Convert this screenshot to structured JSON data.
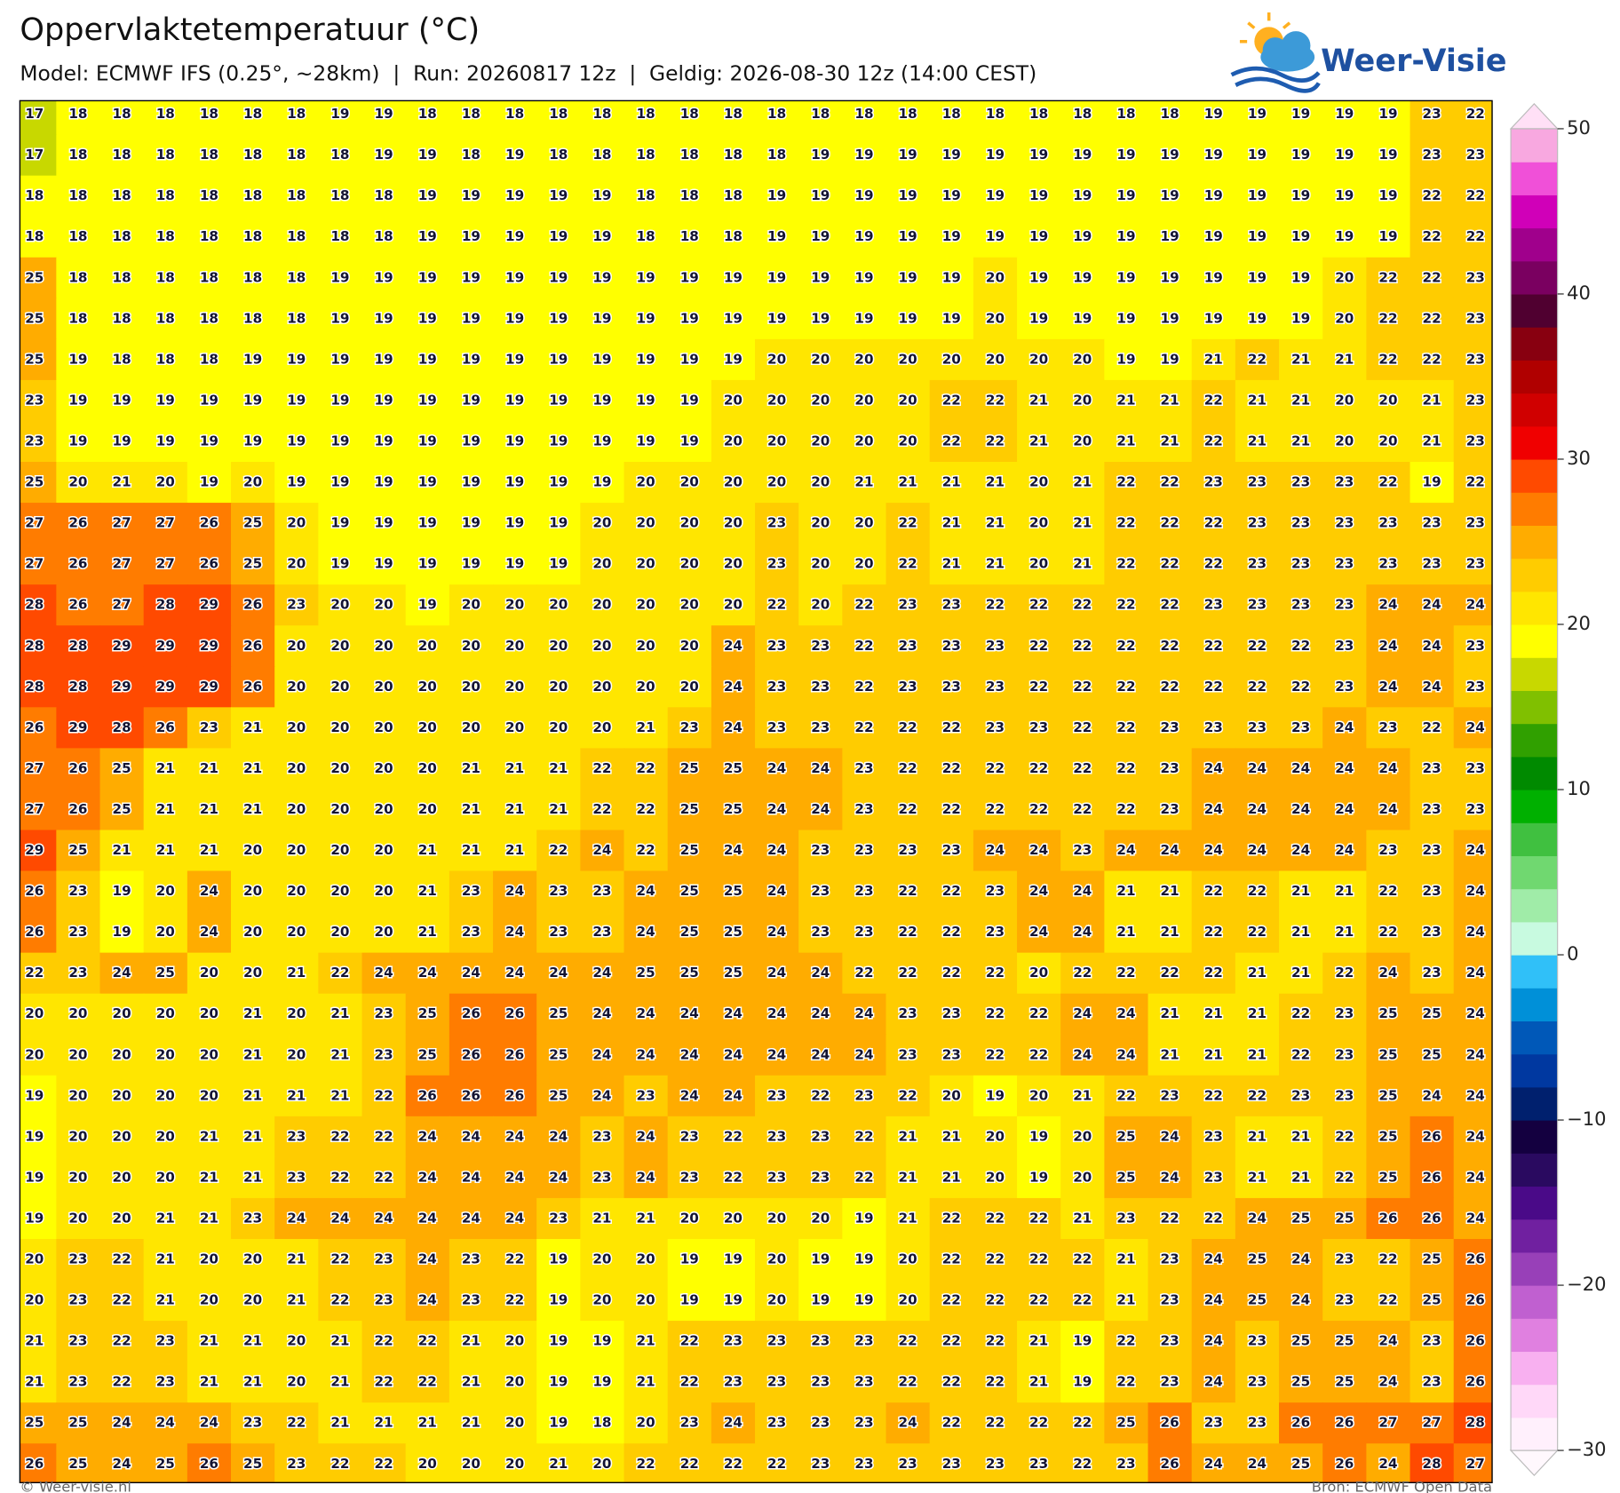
{
  "title": "Oppervlaktetemperatuur (°C)",
  "subtitle": "Model: ECMWF IFS (0.25°, ~28km)  |  Run: 20260817 12z  |  Geldig: 2026-08-30 12z (14:00 CEST)",
  "logo": "Weer-Visie",
  "footer_left": "© Weer-visie.nl",
  "footer_right": "Bron: ECMWF Open Data",
  "grid": {
    "rows": [
      [
        17,
        18,
        18,
        18,
        18,
        18,
        18,
        19,
        19,
        18,
        18,
        18,
        18,
        18,
        18,
        18,
        18,
        18,
        18,
        18,
        18,
        18,
        18,
        18,
        18,
        18,
        18,
        19,
        19,
        19,
        19,
        19,
        23,
        22
      ],
      [
        17,
        18,
        18,
        18,
        18,
        18,
        18,
        18,
        19,
        19,
        18,
        19,
        18,
        18,
        18,
        18,
        18,
        18,
        19,
        19,
        19,
        19,
        19,
        19,
        19,
        19,
        19,
        19,
        19,
        19,
        19,
        19,
        23,
        23
      ],
      [
        18,
        18,
        18,
        18,
        18,
        18,
        18,
        18,
        18,
        19,
        19,
        19,
        19,
        19,
        18,
        18,
        18,
        19,
        19,
        19,
        19,
        19,
        19,
        19,
        19,
        19,
        19,
        19,
        19,
        19,
        19,
        19,
        22,
        22
      ],
      [
        18,
        18,
        18,
        18,
        18,
        18,
        18,
        18,
        18,
        19,
        19,
        19,
        19,
        19,
        18,
        18,
        18,
        19,
        19,
        19,
        19,
        19,
        19,
        19,
        19,
        19,
        19,
        19,
        19,
        19,
        19,
        19,
        22,
        22
      ],
      [
        25,
        18,
        18,
        18,
        18,
        18,
        18,
        19,
        19,
        19,
        19,
        19,
        19,
        19,
        19,
        19,
        19,
        19,
        19,
        19,
        19,
        19,
        20,
        19,
        19,
        19,
        19,
        19,
        19,
        19,
        20,
        22,
        22,
        23
      ],
      [
        25,
        18,
        18,
        18,
        18,
        18,
        18,
        19,
        19,
        19,
        19,
        19,
        19,
        19,
        19,
        19,
        19,
        19,
        19,
        19,
        19,
        19,
        20,
        19,
        19,
        19,
        19,
        19,
        19,
        19,
        20,
        22,
        22,
        23
      ],
      [
        25,
        19,
        18,
        18,
        18,
        19,
        19,
        19,
        19,
        19,
        19,
        19,
        19,
        19,
        19,
        19,
        19,
        20,
        20,
        20,
        20,
        20,
        20,
        20,
        20,
        19,
        19,
        21,
        22,
        21,
        21,
        22,
        22,
        23
      ],
      [
        23,
        19,
        19,
        19,
        19,
        19,
        19,
        19,
        19,
        19,
        19,
        19,
        19,
        19,
        19,
        19,
        20,
        20,
        20,
        20,
        20,
        22,
        22,
        21,
        20,
        21,
        21,
        22,
        21,
        21,
        20,
        20,
        21,
        23
      ],
      [
        23,
        19,
        19,
        19,
        19,
        19,
        19,
        19,
        19,
        19,
        19,
        19,
        19,
        19,
        19,
        19,
        20,
        20,
        20,
        20,
        20,
        22,
        22,
        21,
        20,
        21,
        21,
        22,
        21,
        21,
        20,
        20,
        21,
        23
      ],
      [
        25,
        20,
        21,
        20,
        19,
        20,
        19,
        19,
        19,
        19,
        19,
        19,
        19,
        19,
        20,
        20,
        20,
        20,
        20,
        21,
        21,
        21,
        21,
        20,
        21,
        22,
        22,
        23,
        23,
        23,
        23,
        22,
        19,
        22
      ],
      [
        27,
        26,
        27,
        27,
        26,
        25,
        20,
        19,
        19,
        19,
        19,
        19,
        19,
        20,
        20,
        20,
        20,
        23,
        20,
        20,
        22,
        21,
        21,
        20,
        21,
        22,
        22,
        22,
        23,
        23,
        23,
        23,
        23,
        23
      ],
      [
        27,
        26,
        27,
        27,
        26,
        25,
        20,
        19,
        19,
        19,
        19,
        19,
        19,
        20,
        20,
        20,
        20,
        23,
        20,
        20,
        22,
        21,
        21,
        20,
        21,
        22,
        22,
        22,
        23,
        23,
        23,
        23,
        23,
        23
      ],
      [
        28,
        26,
        27,
        28,
        29,
        26,
        23,
        20,
        20,
        19,
        20,
        20,
        20,
        20,
        20,
        20,
        20,
        22,
        20,
        22,
        23,
        23,
        22,
        22,
        22,
        22,
        22,
        23,
        23,
        23,
        23,
        24,
        24,
        24
      ],
      [
        28,
        28,
        29,
        29,
        29,
        26,
        20,
        20,
        20,
        20,
        20,
        20,
        20,
        20,
        20,
        20,
        24,
        23,
        23,
        22,
        23,
        23,
        23,
        22,
        22,
        22,
        22,
        22,
        22,
        22,
        23,
        24,
        24,
        23
      ],
      [
        28,
        28,
        29,
        29,
        29,
        26,
        20,
        20,
        20,
        20,
        20,
        20,
        20,
        20,
        20,
        20,
        24,
        23,
        23,
        22,
        23,
        23,
        23,
        22,
        22,
        22,
        22,
        22,
        22,
        22,
        23,
        24,
        24,
        23
      ],
      [
        26,
        29,
        28,
        26,
        23,
        21,
        20,
        20,
        20,
        20,
        20,
        20,
        20,
        20,
        21,
        23,
        24,
        23,
        23,
        22,
        22,
        22,
        23,
        23,
        22,
        22,
        23,
        23,
        23,
        23,
        24,
        23,
        22,
        24
      ],
      [
        27,
        26,
        25,
        21,
        21,
        21,
        20,
        20,
        20,
        20,
        21,
        21,
        21,
        22,
        22,
        25,
        25,
        24,
        24,
        23,
        22,
        22,
        22,
        22,
        22,
        22,
        23,
        24,
        24,
        24,
        24,
        24,
        23,
        23
      ],
      [
        27,
        26,
        25,
        21,
        21,
        21,
        20,
        20,
        20,
        20,
        21,
        21,
        21,
        22,
        22,
        25,
        25,
        24,
        24,
        23,
        22,
        22,
        22,
        22,
        22,
        22,
        23,
        24,
        24,
        24,
        24,
        24,
        23,
        23
      ],
      [
        29,
        25,
        21,
        21,
        21,
        20,
        20,
        20,
        20,
        21,
        21,
        21,
        22,
        24,
        22,
        25,
        24,
        24,
        23,
        23,
        23,
        23,
        24,
        24,
        23,
        24,
        24,
        24,
        24,
        24,
        24,
        23,
        23,
        24
      ],
      [
        26,
        23,
        19,
        20,
        24,
        20,
        20,
        20,
        20,
        21,
        23,
        24,
        23,
        23,
        24,
        25,
        25,
        24,
        23,
        23,
        22,
        22,
        23,
        24,
        24,
        21,
        21,
        22,
        22,
        21,
        21,
        22,
        23,
        24
      ],
      [
        26,
        23,
        19,
        20,
        24,
        20,
        20,
        20,
        20,
        21,
        23,
        24,
        23,
        23,
        24,
        25,
        25,
        24,
        23,
        23,
        22,
        22,
        23,
        24,
        24,
        21,
        21,
        22,
        22,
        21,
        21,
        22,
        23,
        24
      ],
      [
        22,
        23,
        24,
        25,
        20,
        20,
        21,
        22,
        24,
        24,
        24,
        24,
        24,
        24,
        25,
        25,
        25,
        24,
        24,
        22,
        22,
        22,
        22,
        20,
        22,
        22,
        22,
        22,
        21,
        21,
        22,
        24,
        23,
        24
      ],
      [
        20,
        20,
        20,
        20,
        20,
        21,
        20,
        21,
        23,
        25,
        26,
        26,
        25,
        24,
        24,
        24,
        24,
        24,
        24,
        24,
        23,
        23,
        22,
        22,
        24,
        24,
        21,
        21,
        21,
        22,
        23,
        25,
        25,
        24
      ],
      [
        20,
        20,
        20,
        20,
        20,
        21,
        20,
        21,
        23,
        25,
        26,
        26,
        25,
        24,
        24,
        24,
        24,
        24,
        24,
        24,
        23,
        23,
        22,
        22,
        24,
        24,
        21,
        21,
        21,
        22,
        23,
        25,
        25,
        24
      ],
      [
        19,
        20,
        20,
        20,
        20,
        21,
        21,
        21,
        22,
        26,
        26,
        26,
        25,
        24,
        23,
        24,
        24,
        23,
        22,
        23,
        22,
        20,
        19,
        20,
        21,
        22,
        23,
        22,
        22,
        23,
        23,
        25,
        24,
        24
      ],
      [
        19,
        20,
        20,
        20,
        21,
        21,
        23,
        22,
        22,
        24,
        24,
        24,
        24,
        23,
        24,
        23,
        22,
        23,
        23,
        22,
        21,
        21,
        20,
        19,
        20,
        25,
        24,
        23,
        21,
        21,
        22,
        25,
        26,
        24
      ],
      [
        19,
        20,
        20,
        20,
        21,
        21,
        23,
        22,
        22,
        24,
        24,
        24,
        24,
        23,
        24,
        23,
        22,
        23,
        23,
        22,
        21,
        21,
        20,
        19,
        20,
        25,
        24,
        23,
        21,
        21,
        22,
        25,
        26,
        24
      ],
      [
        19,
        20,
        20,
        21,
        21,
        23,
        24,
        24,
        24,
        24,
        24,
        24,
        23,
        21,
        21,
        20,
        20,
        20,
        20,
        19,
        21,
        22,
        22,
        22,
        21,
        23,
        22,
        22,
        24,
        25,
        25,
        26,
        26,
        24
      ],
      [
        20,
        23,
        22,
        21,
        20,
        20,
        21,
        22,
        23,
        24,
        23,
        22,
        19,
        20,
        20,
        19,
        19,
        20,
        19,
        19,
        20,
        22,
        22,
        22,
        22,
        21,
        23,
        24,
        25,
        24,
        23,
        22,
        25,
        26
      ],
      [
        20,
        23,
        22,
        21,
        20,
        20,
        21,
        22,
        23,
        24,
        23,
        22,
        19,
        20,
        20,
        19,
        19,
        20,
        19,
        19,
        20,
        22,
        22,
        22,
        22,
        21,
        23,
        24,
        25,
        24,
        23,
        22,
        25,
        26
      ],
      [
        21,
        23,
        22,
        23,
        21,
        21,
        20,
        21,
        22,
        22,
        21,
        20,
        19,
        19,
        21,
        22,
        23,
        23,
        23,
        23,
        22,
        22,
        22,
        21,
        19,
        22,
        23,
        24,
        23,
        25,
        25,
        24,
        23,
        26
      ],
      [
        21,
        23,
        22,
        23,
        21,
        21,
        20,
        21,
        22,
        22,
        21,
        20,
        19,
        19,
        21,
        22,
        23,
        23,
        23,
        23,
        22,
        22,
        22,
        21,
        19,
        22,
        23,
        24,
        23,
        25,
        25,
        24,
        23,
        26
      ],
      [
        25,
        25,
        24,
        24,
        24,
        23,
        22,
        21,
        21,
        21,
        21,
        20,
        19,
        18,
        20,
        23,
        24,
        23,
        23,
        23,
        24,
        22,
        22,
        22,
        22,
        25,
        26,
        23,
        23,
        26,
        26,
        27,
        27,
        28
      ],
      [
        26,
        25,
        24,
        25,
        26,
        25,
        23,
        22,
        22,
        20,
        20,
        20,
        21,
        20,
        22,
        22,
        22,
        22,
        23,
        23,
        23,
        23,
        23,
        23,
        22,
        23,
        26,
        24,
        24,
        25,
        26,
        24,
        28,
        27
      ]
    ]
  },
  "colorbar": {
    "ylim": [
      -30,
      50
    ],
    "yticks": [
      50,
      40,
      30,
      20,
      10,
      0,
      {
        "value": -10,
        "label": "−10"
      },
      {
        "value": -20,
        "label": "−20"
      },
      {
        "value": -30,
        "label": "−30"
      }
    ],
    "colors": [
      "#fff0fc",
      "#ffd8f8",
      "#f8b0f0",
      "#e080e0",
      "#c060d0",
      "#9840b8",
      "#7020a0",
      "#4a0a88",
      "#2a0a60",
      "#140040",
      "#00206e",
      "#0038a0",
      "#0058b8",
      "#0090d8",
      "#30c0f8",
      "#c8fae0",
      "#a0eca8",
      "#70d870",
      "#40c040",
      "#00b000",
      "#008a00",
      "#30a000",
      "#80c000",
      "#c8d800",
      "#ffff00",
      "#ffe600",
      "#ffcc00",
      "#ffac00",
      "#ff7c00",
      "#ff4a00",
      "#f00000",
      "#d00000",
      "#b00000",
      "#880010",
      "#500030",
      "#7a0060",
      "#a0008c",
      "#d000b8",
      "#f050d8",
      "#f8a8e0"
    ],
    "over_color": "#ffe0f6",
    "under_color": "#fff8fd"
  }
}
